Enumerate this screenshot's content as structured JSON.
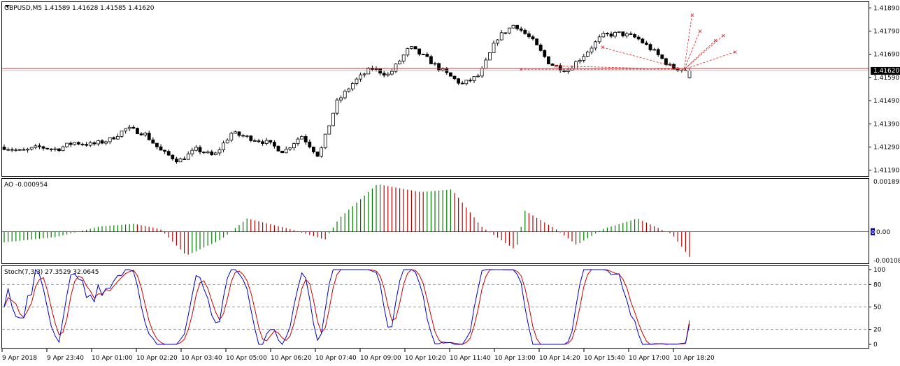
{
  "window": {
    "symbol_header": "GBPUSD,M5  1.41589 1.41628 1.41585 1.41620"
  },
  "price_pane": {
    "price_ticks": [
      "1.41890",
      "1.41790",
      "1.41690",
      "1.41590",
      "1.41490",
      "1.41390",
      "1.41290",
      "1.41190"
    ],
    "current_price_label": "1.41620",
    "bid_line_color": "#c0c0c0",
    "ask_line_color": "#d03030"
  },
  "ao_pane": {
    "header": "AO -0.000954",
    "ticks": [
      "0.001895",
      "0.00",
      "-0.001089"
    ],
    "zero_badge": "0",
    "up_color": "#008000",
    "down_color": "#c00000"
  },
  "stoch_pane": {
    "header": "Stoch(7,3,3) 27.3529 32.0645",
    "ticks": [
      "100",
      "80",
      "50",
      "20",
      "0"
    ],
    "main_color": "#0000cc",
    "signal_color": "#cc0000"
  },
  "time_axis": {
    "labels": [
      "9 Apr 2018",
      "9 Apr 23:40",
      "10 Apr 01:00",
      "10 Apr 02:20",
      "10 Apr 03:40",
      "10 Apr 05:00",
      "10 Apr 06:20",
      "10 Apr 07:40",
      "10 Apr 09:00",
      "10 Apr 10:20",
      "10 Apr 11:40",
      "10 Apr 13:00",
      "10 Apr 14:20",
      "10 Apr 15:40",
      "10 Apr 17:00",
      "10 Apr 18:20"
    ]
  },
  "chart_data": {
    "type": "candlestick",
    "symbol": "GBPUSD",
    "timeframe": "M5",
    "ohlc_last": {
      "open": 1.41589,
      "high": 1.41628,
      "low": 1.41585,
      "close": 1.4162
    },
    "ylim": [
      1.41165,
      1.41915
    ],
    "candle_count": 176,
    "anchors": [
      [
        0,
        1.4129
      ],
      [
        10,
        1.4127
      ],
      [
        20,
        1.4129
      ],
      [
        30,
        1.4128
      ],
      [
        40,
        1.4131
      ],
      [
        50,
        1.413
      ],
      [
        60,
        1.4132
      ],
      [
        70,
        1.4137
      ],
      [
        80,
        1.4135
      ],
      [
        90,
        1.4127
      ],
      [
        100,
        1.4123
      ],
      [
        110,
        1.4128
      ],
      [
        120,
        1.4125
      ],
      [
        130,
        1.4135
      ],
      [
        140,
        1.4133
      ],
      [
        150,
        1.4131
      ],
      [
        160,
        1.4127
      ],
      [
        170,
        1.4134
      ],
      [
        180,
        1.4125
      ],
      [
        190,
        1.4148
      ],
      [
        200,
        1.4157
      ],
      [
        210,
        1.4163
      ],
      [
        220,
        1.416
      ],
      [
        232,
        1.4172
      ],
      [
        242,
        1.4167
      ],
      [
        252,
        1.4161
      ],
      [
        262,
        1.4156
      ],
      [
        272,
        1.416
      ],
      [
        282,
        1.4176
      ],
      [
        292,
        1.4182
      ],
      [
        302,
        1.4175
      ],
      [
        312,
        1.4165
      ],
      [
        322,
        1.4162
      ],
      [
        332,
        1.4169
      ],
      [
        342,
        1.4177
      ],
      [
        352,
        1.4178
      ],
      [
        362,
        1.4176
      ],
      [
        372,
        1.417
      ],
      [
        382,
        1.4163
      ],
      [
        392,
        1.4162
      ]
    ],
    "ao": {
      "current": -0.000954,
      "ylim": [
        -0.001089,
        0.001895
      ],
      "anchors": [
        [
          0,
          -0.0004
        ],
        [
          30,
          -0.0002
        ],
        [
          55,
          0.0002
        ],
        [
          75,
          0.0003
        ],
        [
          90,
          0.0001
        ],
        [
          105,
          -0.0009
        ],
        [
          125,
          -0.0003
        ],
        [
          140,
          0.0005
        ],
        [
          165,
          0.0001
        ],
        [
          185,
          -0.0003
        ],
        [
          193,
          0.0005
        ],
        [
          215,
          0.0018
        ],
        [
          240,
          0.0015
        ],
        [
          258,
          0.0016
        ],
        [
          275,
          0.0002
        ],
        [
          295,
          -0.0007
        ],
        [
          300,
          0.0008
        ],
        [
          318,
          0.0001
        ],
        [
          330,
          -0.0005
        ],
        [
          345,
          0.0001
        ],
        [
          365,
          0.0005
        ],
        [
          385,
          -0.0001
        ],
        [
          395,
          -0.00095
        ]
      ]
    },
    "stochastic": {
      "params": "7,3,3",
      "main_last": 27.3529,
      "signal_last": 32.0645,
      "levels": [
        80,
        50,
        20
      ],
      "ylim": [
        0,
        100
      ]
    }
  }
}
